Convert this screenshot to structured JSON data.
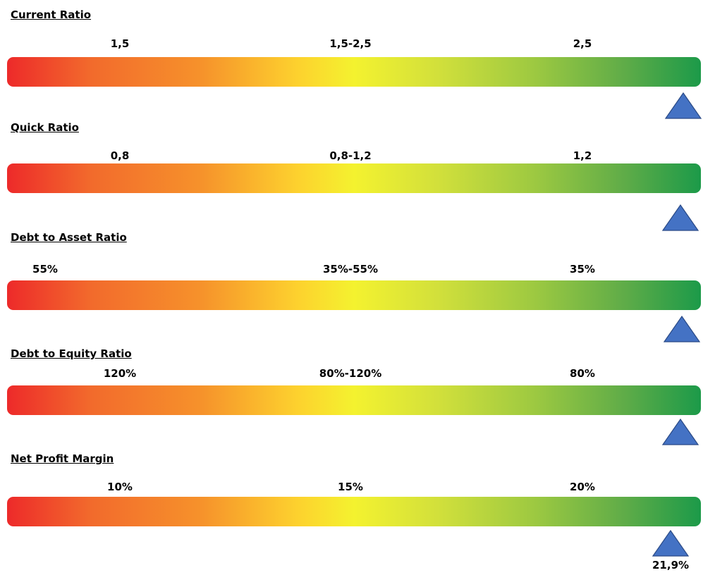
{
  "colors": {
    "gradient": [
      "#ed2a2a",
      "#f6922b",
      "#f4f22f",
      "#9dc941",
      "#1c9a49"
    ],
    "marker": "#4472c4",
    "marker_outline": "#2a4a86"
  },
  "chart_data": [
    {
      "type": "gauge",
      "title": "Current Ratio",
      "tick_labels": [
        "1,5",
        "1,5-2,5",
        "2,5"
      ],
      "indicator_position": "right end"
    },
    {
      "type": "gauge",
      "title": "Quick Ratio",
      "tick_labels": [
        "0,8",
        "0,8-1,2",
        "1,2"
      ],
      "indicator_position": "right end"
    },
    {
      "type": "gauge",
      "title": "Debt to Asset Ratio",
      "tick_labels": [
        "55%",
        "35%-55%",
        "35%"
      ],
      "indicator_position": "right end"
    },
    {
      "type": "gauge",
      "title": "Debt to Equity Ratio",
      "tick_labels": [
        "120%",
        "80%-120%",
        "80%"
      ],
      "indicator_position": "right end"
    },
    {
      "type": "gauge",
      "title": "Net Profit Margin",
      "tick_labels": [
        "10%",
        "15%",
        "20%"
      ],
      "tick_values": [
        10,
        15,
        20
      ],
      "value": 21.9,
      "value_label": "21,9%",
      "indicator_position": "value"
    }
  ]
}
